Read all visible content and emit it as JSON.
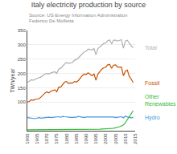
{
  "chart_data": {
    "type": "line",
    "title": "Italy electricity production by source",
    "subtitle": [
      "Source: US Energy Information Administration",
      "Federico De Molfetta"
    ],
    "y_label": "TWh/year",
    "x": [
      1960,
      1961,
      1962,
      1963,
      1964,
      1965,
      1966,
      1967,
      1968,
      1969,
      1970,
      1971,
      1972,
      1973,
      1974,
      1975,
      1976,
      1977,
      1978,
      1979,
      1980,
      1981,
      1982,
      1983,
      1984,
      1985,
      1986,
      1987,
      1988,
      1989,
      1990,
      1991,
      1992,
      1993,
      1994,
      1995,
      1996,
      1997,
      1998,
      1999,
      2000,
      2001,
      2002,
      2003,
      2004,
      2005,
      2006,
      2007,
      2008,
      2009,
      2010,
      2011,
      2012,
      2013,
      2014
    ],
    "series": [
      {
        "name": "Total",
        "color": "#b0b0b0",
        "values": [
          170,
          172,
          178,
          176,
          180,
          182,
          185,
          188,
          193,
          198,
          200,
          198,
          202,
          203,
          206,
          200,
          215,
          218,
          226,
          233,
          238,
          235,
          237,
          238,
          246,
          248,
          254,
          261,
          268,
          275,
          278,
          285,
          283,
          282,
          287,
          265,
          287,
          293,
          300,
          305,
          307,
          314,
          317,
          303,
          316,
          316,
          313,
          315,
          318,
          288,
          313,
          316,
          306,
          296,
          290
        ]
      },
      {
        "name": "Fossil",
        "color": "#c85000",
        "values": [
          100,
          102,
          108,
          106,
          110,
          110,
          112,
          118,
          126,
          132,
          136,
          132,
          138,
          140,
          143,
          136,
          152,
          152,
          160,
          170,
          172,
          165,
          167,
          166,
          172,
          170,
          175,
          184,
          192,
          198,
          196,
          202,
          198,
          192,
          198,
          176,
          198,
          207,
          215,
          220,
          222,
          230,
          232,
          218,
          229,
          230,
          222,
          222,
          222,
          192,
          208,
          212,
          190,
          180,
          168
        ]
      },
      {
        "name": "Hydro",
        "color": "#4499dd",
        "values": [
          46,
          45,
          43,
          42,
          42,
          44,
          46,
          44,
          45,
          47,
          48,
          47,
          46,
          47,
          47,
          49,
          49,
          47,
          50,
          49,
          48,
          47,
          47,
          46,
          47,
          47,
          50,
          48,
          47,
          46,
          48,
          48,
          47,
          49,
          48,
          47,
          47,
          47,
          49,
          48,
          49,
          48,
          48,
          49,
          48,
          46,
          47,
          47,
          49,
          45,
          51,
          48,
          46,
          45,
          46
        ]
      },
      {
        "name": "Other Renewables",
        "color": "#33bb33",
        "values": [
          3,
          3,
          3,
          3,
          3,
          3,
          3,
          3,
          3,
          3,
          3,
          3,
          3,
          3,
          3,
          3,
          3,
          3,
          3,
          3,
          3,
          3,
          3,
          3,
          3,
          3,
          3,
          3,
          3,
          3,
          3,
          3,
          4,
          4,
          4,
          5,
          5,
          5,
          6,
          6,
          7,
          7,
          7,
          8,
          9,
          10,
          12,
          14,
          17,
          20,
          28,
          38,
          50,
          60,
          70
        ]
      }
    ],
    "xlim": [
      1960,
      2015
    ],
    "xticks": [
      1960,
      1965,
      1970,
      1975,
      1980,
      1985,
      1990,
      1995,
      2000,
      2005,
      2010,
      2015
    ],
    "ylim": [
      0,
      350
    ],
    "yticks": [
      {
        "value": 0,
        "label": null
      },
      {
        "value": 50,
        "label": null
      },
      100,
      150,
      200,
      250,
      300,
      350
    ],
    "grid": true
  }
}
